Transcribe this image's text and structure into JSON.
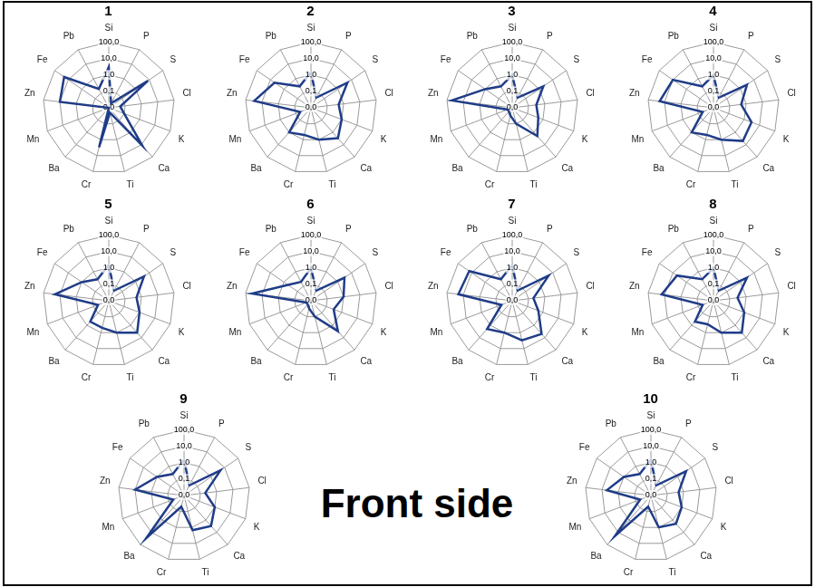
{
  "annotation": "Front side",
  "chart_data": [
    {
      "type": "radar",
      "title": "1",
      "categories": [
        "Si",
        "P",
        "S",
        "Cl",
        "K",
        "Ca",
        "Ti",
        "Cr",
        "Ba",
        "Mn",
        "Zn",
        "Fe",
        "Pb"
      ],
      "values": [
        3,
        0.02,
        8,
        0.05,
        0.1,
        12,
        0.02,
        3,
        0.01,
        0.01,
        10,
        20,
        0.2
      ],
      "color": "#1f3c88",
      "ylim": [
        0.01,
        100
      ],
      "yticks": [
        {
          "value": 0.01,
          "label": "0,0"
        },
        {
          "value": 0.1,
          "label": "0,1"
        },
        {
          "value": 1,
          "label": "1,0"
        },
        {
          "value": 10,
          "label": "10,0"
        },
        {
          "value": 100,
          "label": "100,0"
        }
      ],
      "log": true,
      "grid": true
    },
    {
      "type": "radar",
      "title": "2",
      "categories": [
        "Si",
        "P",
        "S",
        "Cl",
        "K",
        "Ca",
        "Ti",
        "Cr",
        "Ba",
        "Mn",
        "Zn",
        "Fe",
        "Pb"
      ],
      "values": [
        1.5,
        0.05,
        5,
        0.5,
        1,
        3,
        1,
        0.5,
        1,
        0.05,
        30,
        5,
        0.3
      ],
      "color": "#1f3c88",
      "ylim": [
        0.01,
        100
      ],
      "yticks": [
        {
          "value": 0.01,
          "label": "0,0"
        },
        {
          "value": 0.1,
          "label": "0,1"
        },
        {
          "value": 1,
          "label": "1,0"
        },
        {
          "value": 10,
          "label": "10,0"
        },
        {
          "value": 100,
          "label": "100,0"
        }
      ],
      "log": true,
      "grid": true
    },
    {
      "type": "radar",
      "title": "3",
      "categories": [
        "Si",
        "P",
        "S",
        "Cl",
        "K",
        "Ca",
        "Ti",
        "Cr",
        "Ba",
        "Mn",
        "Zn",
        "Fe",
        "Pb"
      ],
      "values": [
        1,
        0.05,
        2,
        0.3,
        0.5,
        2,
        0.1,
        0.03,
        0.02,
        0.02,
        50,
        1,
        0.3
      ],
      "color": "#1f3c88",
      "ylim": [
        0.01,
        100
      ],
      "yticks": [
        {
          "value": 0.01,
          "label": "0,0"
        },
        {
          "value": 0.1,
          "label": "0,1"
        },
        {
          "value": 1,
          "label": "1,0"
        },
        {
          "value": 10,
          "label": "10,0"
        },
        {
          "value": 100,
          "label": "100,0"
        }
      ],
      "log": true,
      "grid": true
    },
    {
      "type": "radar",
      "title": "4",
      "categories": [
        "Si",
        "P",
        "S",
        "Cl",
        "K",
        "Ca",
        "Ti",
        "Cr",
        "Ba",
        "Mn",
        "Zn",
        "Fe",
        "Pb"
      ],
      "values": [
        1,
        0.05,
        3,
        0.5,
        3,
        5,
        1,
        0.5,
        1,
        0.05,
        20,
        10,
        0.3
      ],
      "color": "#1f3c88",
      "ylim": [
        0.01,
        100
      ],
      "yticks": [
        {
          "value": 0.01,
          "label": "0,0"
        },
        {
          "value": 0.1,
          "label": "0,1"
        },
        {
          "value": 1,
          "label": "1,0"
        },
        {
          "value": 10,
          "label": "10,0"
        },
        {
          "value": 100,
          "label": "100,0"
        }
      ],
      "log": true,
      "grid": true
    },
    {
      "type": "radar",
      "title": "5",
      "categories": [
        "Si",
        "P",
        "S",
        "Cl",
        "K",
        "Ca",
        "Ti",
        "Cr",
        "Ba",
        "Mn",
        "Zn",
        "Fe",
        "Pb"
      ],
      "values": [
        1.5,
        0.05,
        4,
        0.5,
        1,
        4,
        1,
        0.5,
        0.5,
        0.05,
        20,
        1,
        0.3
      ],
      "color": "#1f3c88",
      "ylim": [
        0.01,
        100
      ],
      "yticks": [
        {
          "value": 0.01,
          "label": "0,0"
        },
        {
          "value": 0.1,
          "label": "0,1"
        },
        {
          "value": 1,
          "label": "1,0"
        },
        {
          "value": 10,
          "label": "10,0"
        },
        {
          "value": 100,
          "label": "100,0"
        }
      ],
      "log": true,
      "grid": true
    },
    {
      "type": "radar",
      "title": "6",
      "categories": [
        "Si",
        "P",
        "S",
        "Cl",
        "K",
        "Ca",
        "Ti",
        "Cr",
        "Ba",
        "Mn",
        "Zn",
        "Fe",
        "Pb"
      ],
      "values": [
        1,
        0.05,
        3,
        1,
        0.3,
        3,
        0.1,
        0.03,
        0.02,
        0.02,
        40,
        0.5,
        0.2
      ],
      "color": "#1f3c88",
      "ylim": [
        0.01,
        100
      ],
      "yticks": [
        {
          "value": 0.01,
          "label": "0,0"
        },
        {
          "value": 0.1,
          "label": "0,1"
        },
        {
          "value": 1,
          "label": "1,0"
        },
        {
          "value": 10,
          "label": "10,0"
        },
        {
          "value": 100,
          "label": "100,0"
        }
      ],
      "log": true,
      "grid": true
    },
    {
      "type": "radar",
      "title": "7",
      "categories": [
        "Si",
        "P",
        "S",
        "Cl",
        "K",
        "Ca",
        "Ti",
        "Cr",
        "Ba",
        "Mn",
        "Zn",
        "Fe",
        "Pb"
      ],
      "values": [
        1.5,
        0.05,
        5,
        0.2,
        0.5,
        5,
        3,
        1,
        2,
        0.05,
        20,
        15,
        0.3
      ],
      "color": "#1f3c88",
      "ylim": [
        0.01,
        100
      ],
      "yticks": [
        {
          "value": 0.01,
          "label": "0,0"
        },
        {
          "value": 0.1,
          "label": "0,1"
        },
        {
          "value": 1,
          "label": "1,0"
        },
        {
          "value": 10,
          "label": "10,0"
        },
        {
          "value": 100,
          "label": "100,0"
        }
      ],
      "log": true,
      "grid": true
    },
    {
      "type": "radar",
      "title": "8",
      "categories": [
        "Si",
        "P",
        "S",
        "Cl",
        "K",
        "Ca",
        "Ti",
        "Cr",
        "Ba",
        "Mn",
        "Zn",
        "Fe",
        "Pb"
      ],
      "values": [
        1,
        0.05,
        3,
        0.3,
        1,
        4,
        1,
        0.3,
        0.5,
        0.05,
        15,
        5,
        0.3
      ],
      "color": "#1f3c88",
      "ylim": [
        0.01,
        100
      ],
      "yticks": [
        {
          "value": 0.01,
          "label": "0,0"
        },
        {
          "value": 0.1,
          "label": "0,1"
        },
        {
          "value": 1,
          "label": "1,0"
        },
        {
          "value": 10,
          "label": "10,0"
        },
        {
          "value": 100,
          "label": "100,0"
        }
      ],
      "log": true,
      "grid": true
    },
    {
      "type": "radar",
      "title": "9",
      "categories": [
        "Si",
        "P",
        "S",
        "Cl",
        "K",
        "Ca",
        "Ti",
        "Cr",
        "Ba",
        "Mn",
        "Zn",
        "Fe",
        "Pb"
      ],
      "values": [
        1.5,
        0.05,
        5,
        0.2,
        1,
        3,
        1.5,
        0.05,
        30,
        0.05,
        10,
        1,
        0.3
      ],
      "color": "#1f3c88",
      "ylim": [
        0.01,
        100
      ],
      "yticks": [
        {
          "value": 0.01,
          "label": "0,0"
        },
        {
          "value": 0.1,
          "label": "0,1"
        },
        {
          "value": 1,
          "label": "1,0"
        },
        {
          "value": 10,
          "label": "10,0"
        },
        {
          "value": 100,
          "label": "100,0"
        }
      ],
      "log": true,
      "grid": true
    },
    {
      "type": "radar",
      "title": "10",
      "categories": [
        "Si",
        "P",
        "S",
        "Cl",
        "K",
        "Ca",
        "Ti",
        "Cr",
        "Ba",
        "Mn",
        "Zn",
        "Fe",
        "Pb"
      ],
      "values": [
        1.5,
        0.05,
        4,
        0.5,
        1,
        2,
        1,
        0.05,
        20,
        0.05,
        5,
        1,
        0.3
      ],
      "color": "#1f3c88",
      "ylim": [
        0.01,
        100
      ],
      "yticks": [
        {
          "value": 0.01,
          "label": "0,0"
        },
        {
          "value": 0.1,
          "label": "0,1"
        },
        {
          "value": 1,
          "label": "1,0"
        },
        {
          "value": 10,
          "label": "10,0"
        },
        {
          "value": 100,
          "label": "100,0"
        }
      ],
      "log": true,
      "grid": true
    }
  ]
}
